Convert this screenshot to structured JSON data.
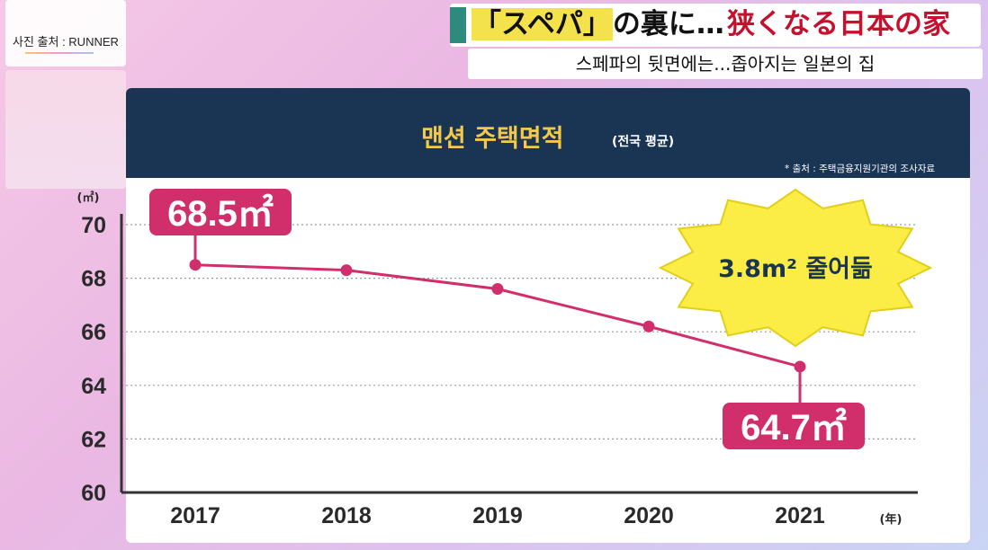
{
  "source_overlay": "사진 출처 : RUNNER",
  "headline_jp": {
    "part1": "「スペパ」",
    "part2": "の裏に…",
    "part3": "狭くなる日本の家"
  },
  "headline_kr": "스페파의 뒷면에는...좁아지는 일본의 집",
  "colors": {
    "line": "#d12f6b",
    "header": "#1a3554",
    "title": "#f2c94c",
    "burst": "#fbed45"
  },
  "chart_data": {
    "type": "line",
    "title": "맨션 주택면적",
    "subtitle": "(전국 평균)",
    "source_note": "* 출처 : 주택금융지원기관의 조사자료",
    "ylabel": "(㎡)",
    "xlabel": "(年)",
    "categories": [
      "2017",
      "2018",
      "2019",
      "2020",
      "2021"
    ],
    "values": [
      68.5,
      68.3,
      67.6,
      66.2,
      64.7
    ],
    "ylim": [
      60,
      70
    ],
    "yticks": [
      "60",
      "62",
      "64",
      "66",
      "68",
      "70"
    ],
    "grid": true,
    "callouts": {
      "first": "68.5㎡",
      "last": "64.7㎡"
    },
    "annotation": "3.8m² 줄어듦"
  }
}
